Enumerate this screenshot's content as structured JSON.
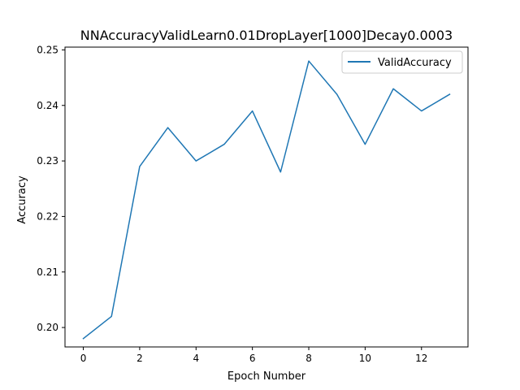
{
  "chart_data": {
    "type": "line",
    "title": "NNAccuracyValidLearn0.01DropLayer[1000]Decay0.0003",
    "xlabel": "Epoch Number",
    "ylabel": "Accuracy",
    "xlim": [
      -0.65,
      13.65
    ],
    "ylim": [
      0.1965,
      0.2505
    ],
    "xticks": [
      0,
      2,
      4,
      6,
      8,
      10,
      12
    ],
    "xtick_labels": [
      "0",
      "2",
      "4",
      "6",
      "8",
      "10",
      "12"
    ],
    "yticks": [
      0.2,
      0.21,
      0.22,
      0.23,
      0.24,
      0.25
    ],
    "ytick_labels": [
      "0.20",
      "0.21",
      "0.22",
      "0.23",
      "0.24",
      "0.25"
    ],
    "grid": false,
    "legend_position": "top-right",
    "series": [
      {
        "name": "ValidAccuracy",
        "color": "#1f77b4",
        "x": [
          0,
          1,
          2,
          3,
          4,
          5,
          6,
          7,
          8,
          9,
          10,
          11,
          12,
          13
        ],
        "values": [
          0.198,
          0.202,
          0.229,
          0.236,
          0.23,
          0.233,
          0.239,
          0.228,
          0.248,
          0.242,
          0.233,
          0.243,
          0.239,
          0.242
        ]
      }
    ]
  }
}
